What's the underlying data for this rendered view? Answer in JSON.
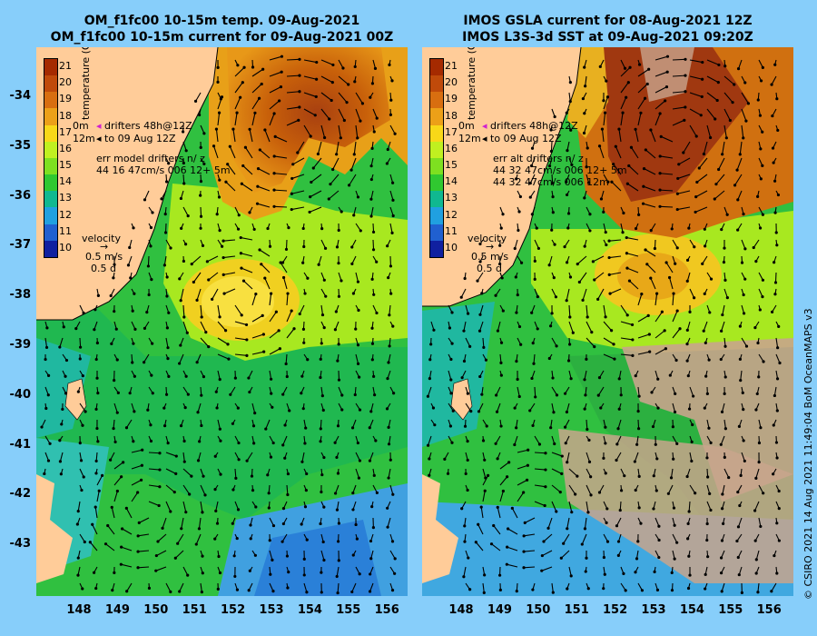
{
  "left_panel": {
    "title_line1": "OM_f1fc00 10-15m temp. 09-Aug-2021",
    "title_line2": "OM_f1fc00 10-15m current for 09-Aug-2021 00Z",
    "legend_drifters": "drifters 48h@12Z",
    "legend_drift_tip": "to 09 Aug 12Z",
    "legend_drift_0m": "0m",
    "legend_drift_12m": "12m",
    "err_title": "err model drifters n/ z",
    "err_line1": "44 16 47cm/s 006 12+ 5m",
    "err_line2": ""
  },
  "right_panel": {
    "title_line1": "IMOS GSLA current for 08-Aug-2021 12Z",
    "title_line2": "IMOS L3S-3d SST at 09-Aug-2021 09:20Z",
    "legend_drifters": "drifters 48h@12Z",
    "legend_drift_tip": "to 09 Aug 12Z",
    "legend_drift_0m": "0m",
    "legend_drift_12m": "12m",
    "err_title": "err alt drifters n/ z",
    "err_line1": "44 32 47cm/s 006 12+ 5m",
    "err_line2": "44 32 47cm/s 006 12m"
  },
  "velocity_legend": {
    "title": "velocity",
    "speed": "0.5 m/s",
    "duration": "0.5 d"
  },
  "colorbar": {
    "title": "temperature (C)",
    "ticks": [
      "21",
      "20",
      "19",
      "18",
      "17",
      "16",
      "15",
      "14",
      "13",
      "12",
      "11",
      "10"
    ],
    "colors": [
      "#a52a00",
      "#c04a0a",
      "#d86e10",
      "#eca018",
      "#f8d818",
      "#c0f020",
      "#7ee020",
      "#30c830",
      "#10b890",
      "#20a0e0",
      "#2060d0",
      "#1020a0"
    ]
  },
  "y_ticks": [
    "-34",
    "-35",
    "-36",
    "-37",
    "-38",
    "-39",
    "-40",
    "-41",
    "-42",
    "-43"
  ],
  "x_ticks": [
    "148",
    "149",
    "150",
    "151",
    "152",
    "153",
    "154",
    "155",
    "156"
  ],
  "copyright": "© CSIRO 2021  14 Aug 2021 11:49:04 BoM OceanMAPS v3",
  "colors": {
    "background": "#87cefa",
    "land": "#ffcc99",
    "no_data": "#c8a48c",
    "arrow": "#000000"
  }
}
